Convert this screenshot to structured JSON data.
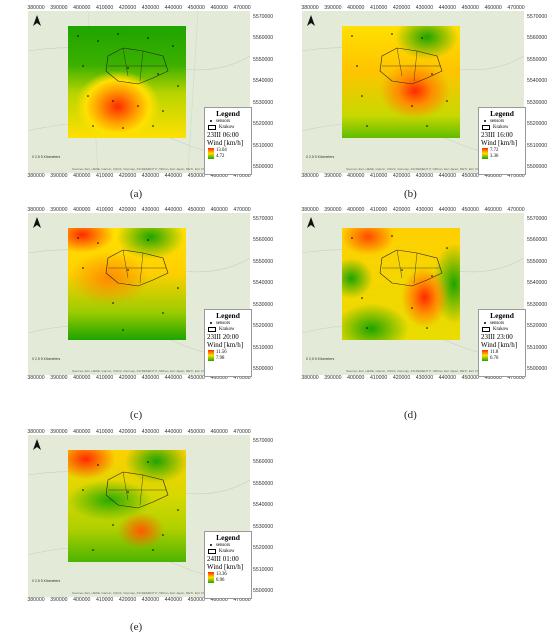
{
  "x_ticks": [
    "380000",
    "390000",
    "400000",
    "410000",
    "420000",
    "430000",
    "440000",
    "450000",
    "460000",
    "470000"
  ],
  "y_ticks": [
    "5570000",
    "5560000",
    "5550000",
    "5540000",
    "5530000",
    "5520000",
    "5510000",
    "5500000"
  ],
  "legend_common": {
    "title": "Legend",
    "sensors": "sensors",
    "krakow": "Krakow",
    "variable": "Wind [km/h]"
  },
  "scale_text": "0 2,5 5 Kilometers",
  "credit_text": "Sources: Esri, HERE, Garmin, USGS, Intermap, INCREMENT P, NRCan, Esri Japan, METI, Esri China (Hong Kong), Esri Korea",
  "panels": [
    {
      "caption": "(a)",
      "time": "23III 06:00",
      "max": "13.04",
      "min": "4.72"
    },
    {
      "caption": "(b)",
      "time": "23III 16:00",
      "max": "7.72",
      "min": "3.36"
    },
    {
      "caption": "(c)",
      "time": "23III 20:00",
      "max": "11.56",
      "min": "7.98"
    },
    {
      "caption": "(d)",
      "time": "23III 23:00",
      "max": "11.8",
      "min": "6.76"
    },
    {
      "caption": "(e)",
      "time": "24III 01:00",
      "max": "13.36",
      "min": "6.96"
    }
  ],
  "colors": {
    "high": "#ff2a00",
    "mid": "#ffe000",
    "low": "#1ea400"
  }
}
